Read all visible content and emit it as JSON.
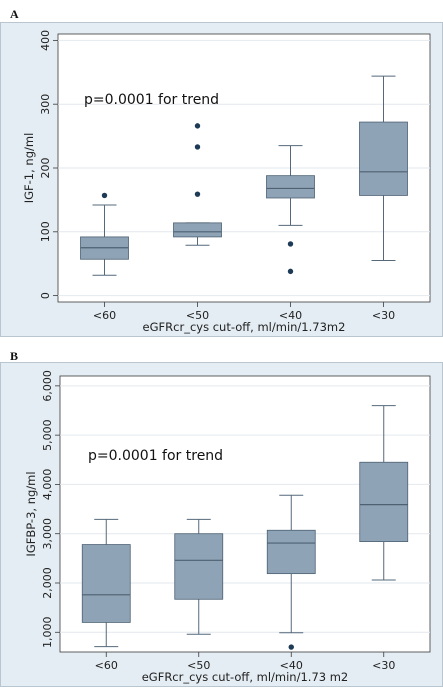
{
  "chart_data": [
    {
      "type": "box",
      "panel_label": "A",
      "ylabel": "IGF-1, ng/ml",
      "xlabel": "eGFRcr_cys cut-off, ml/min/1.73m2",
      "annotation": "p=0.0001 for trend",
      "categories": [
        "<60",
        "<50",
        "<40",
        "<30"
      ],
      "ylim": [
        -10,
        410
      ],
      "yticks": [
        0,
        100,
        200,
        300,
        400
      ],
      "ytick_labels": [
        "0",
        "100",
        "200",
        "300",
        "400"
      ],
      "grid": true,
      "boxes": [
        {
          "category": "<60",
          "whisker_low": 32,
          "q1": 57,
          "median": 75,
          "q3": 92,
          "whisker_high": 142,
          "outliers": [
            157
          ]
        },
        {
          "category": "<50",
          "whisker_low": 79,
          "q1": 92,
          "median": 100,
          "q3": 114,
          "whisker_high": 114,
          "outliers": [
            159,
            233,
            266
          ]
        },
        {
          "category": "<40",
          "whisker_low": 110,
          "q1": 153,
          "median": 168,
          "q3": 188,
          "whisker_high": 235,
          "outliers": [
            38,
            81
          ]
        },
        {
          "category": "<30",
          "whisker_low": 55,
          "q1": 157,
          "median": 194,
          "q3": 272,
          "whisker_high": 344,
          "outliers": []
        }
      ]
    },
    {
      "type": "box",
      "panel_label": "B",
      "ylabel": "IGFBP-3, ng/ml",
      "xlabel": "eGFRcr_cys cut-off, ml/min/1.73 m2",
      "annotation": "p=0.0001 for trend",
      "categories": [
        "<60",
        "<50",
        "<40",
        "<30"
      ],
      "ylim": [
        600,
        6200
      ],
      "yticks": [
        1000,
        2000,
        3000,
        4000,
        5000,
        6000
      ],
      "ytick_labels": [
        "1,000",
        "2,000",
        "3,000",
        "4,000",
        "5,000",
        "6,000"
      ],
      "grid": true,
      "boxes": [
        {
          "category": "<60",
          "whisker_low": 710,
          "q1": 1200,
          "median": 1760,
          "q3": 2780,
          "whisker_high": 3290,
          "outliers": []
        },
        {
          "category": "<50",
          "whisker_low": 960,
          "q1": 1670,
          "median": 2460,
          "q3": 3000,
          "whisker_high": 3290,
          "outliers": []
        },
        {
          "category": "<40",
          "whisker_low": 990,
          "q1": 2190,
          "median": 2810,
          "q3": 3070,
          "whisker_high": 3780,
          "outliers": [
            700
          ]
        },
        {
          "category": "<30",
          "whisker_low": 2060,
          "q1": 2840,
          "median": 3590,
          "q3": 4450,
          "whisker_high": 5600,
          "outliers": []
        }
      ]
    }
  ],
  "colors": {
    "plot_bg": "#ffffff",
    "outer_bg": "#e4edf3",
    "box_fill": "#8ea3b5",
    "box_stroke": "#4d6173",
    "whisker": "#55697b",
    "outlier": "#1d3a56",
    "grid": "#e3e9ee",
    "frame": "#3a3a3a"
  }
}
